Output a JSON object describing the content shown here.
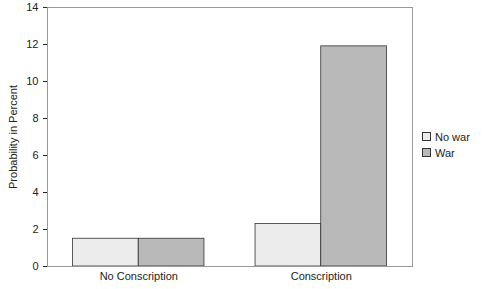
{
  "chart_data": {
    "type": "bar",
    "categories": [
      "No Conscription",
      "Conscription"
    ],
    "series": [
      {
        "name": "No war",
        "color": "#ececec",
        "values": [
          1.5,
          2.3
        ]
      },
      {
        "name": "War",
        "color": "#b9b9b9",
        "values": [
          1.5,
          11.9
        ]
      }
    ],
    "y_label": "Probability in Percent",
    "ylim": [
      0,
      14
    ],
    "yticks": [
      0,
      2,
      4,
      6,
      8,
      10,
      12,
      14
    ],
    "grid": false,
    "legend": "right"
  }
}
